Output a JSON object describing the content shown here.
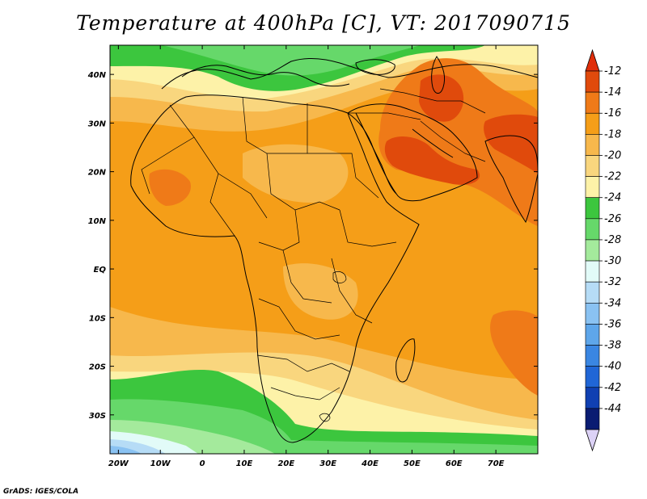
{
  "title": "Temperature at 400hPa [C], VT: 2017090715",
  "credit": "GrADS: IGES/COLA",
  "map": {
    "lon_range": [
      -22,
      80
    ],
    "lat_range": [
      -38,
      46
    ],
    "lon_ticks": [
      {
        "value": -20,
        "label": "20W"
      },
      {
        "value": -10,
        "label": "10W"
      },
      {
        "value": 0,
        "label": "0"
      },
      {
        "value": 10,
        "label": "10E"
      },
      {
        "value": 20,
        "label": "20E"
      },
      {
        "value": 30,
        "label": "30E"
      },
      {
        "value": 40,
        "label": "40E"
      },
      {
        "value": 50,
        "label": "50E"
      },
      {
        "value": 60,
        "label": "60E"
      },
      {
        "value": 70,
        "label": "70E"
      }
    ],
    "lat_ticks": [
      {
        "value": 40,
        "label": "40N"
      },
      {
        "value": 30,
        "label": "30N"
      },
      {
        "value": 20,
        "label": "20N"
      },
      {
        "value": 10,
        "label": "10N"
      },
      {
        "value": 0,
        "label": "EQ"
      },
      {
        "value": -10,
        "label": "10S"
      },
      {
        "value": -20,
        "label": "20S"
      },
      {
        "value": -30,
        "label": "30S"
      }
    ]
  },
  "colorbar": {
    "labels": [
      "-12",
      "-14",
      "-16",
      "-18",
      "-20",
      "-22",
      "-24",
      "-26",
      "-28",
      "-30",
      "-32",
      "-34",
      "-36",
      "-38",
      "-40",
      "-42",
      "-44"
    ],
    "colors": [
      "#e04a0c",
      "#ef7a18",
      "#f59e18",
      "#f7b84c",
      "#f9d67e",
      "#fdf2a8",
      "#3cc63e",
      "#66d86a",
      "#a4ea9c",
      "#e2fbf8",
      "#b6dcf6",
      "#8ac2f2",
      "#5ea6ea",
      "#3a86e2",
      "#2066d6",
      "#1040b2",
      "#0a1c72"
    ],
    "top_color": "#e02e0a",
    "bottom_color": "#dcd2f6"
  },
  "chart_data": {
    "type": "heatmap",
    "title": "Temperature at 400hPa [C], VT: 2017090715",
    "units": "C",
    "x_range": [
      -22,
      80
    ],
    "y_range": [
      -38,
      46
    ],
    "levels": [
      -44,
      -42,
      -40,
      -38,
      -36,
      -34,
      -32,
      -30,
      -28,
      -26,
      -24,
      -22,
      -20,
      -18,
      -16,
      -14,
      -12
    ],
    "regions": [
      {
        "name": "Arabian Peninsula / Iran / NW India",
        "approx_value": -13
      },
      {
        "name": "Sahel to East Africa and Indian Ocean",
        "approx_value": -17
      },
      {
        "name": "Mediterranean / Southern Europe",
        "approx_value": -23
      },
      {
        "name": "South Atlantic off Southern Africa",
        "approx_value": -25
      },
      {
        "name": "Southwest corner of domain",
        "approx_value": -31
      }
    ]
  }
}
